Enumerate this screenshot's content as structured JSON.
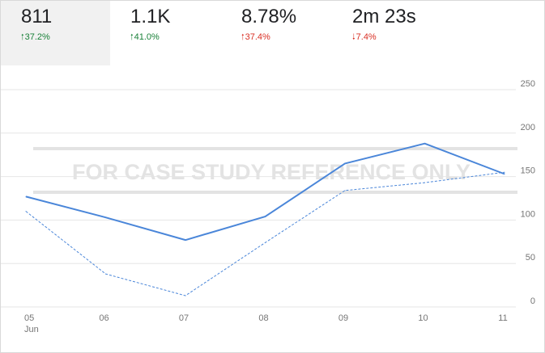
{
  "metrics": [
    {
      "value": "811",
      "delta": "37.2%",
      "direction": "up",
      "tone": "good",
      "active": true
    },
    {
      "value": "1.1K",
      "delta": "41.0%",
      "direction": "up",
      "tone": "good",
      "active": false
    },
    {
      "value": "8.78%",
      "delta": "37.4%",
      "direction": "up",
      "tone": "bad",
      "active": false
    },
    {
      "value": "2m 23s",
      "delta": "7.4%",
      "direction": "down",
      "tone": "bad",
      "active": false
    }
  ],
  "watermark": "FOR CASE STUDY REFERENCE ONLY",
  "colors": {
    "line": "#4a86d9",
    "good": "#188038",
    "bad": "#d93025",
    "grid": "#e6e6e6",
    "axis_text": "#757575"
  },
  "chart_data": {
    "type": "line",
    "x": [
      "05",
      "06",
      "07",
      "08",
      "09",
      "10",
      "11"
    ],
    "x_sublabel": "Jun",
    "y_ticks": [
      0,
      50,
      100,
      150,
      200,
      250
    ],
    "ylim": [
      0,
      250
    ],
    "series": [
      {
        "style": "solid",
        "values": [
          127,
          103,
          77,
          104,
          165,
          188,
          153
        ]
      },
      {
        "style": "dashed",
        "values": [
          110,
          38,
          13,
          74,
          134,
          143,
          155
        ]
      }
    ]
  }
}
